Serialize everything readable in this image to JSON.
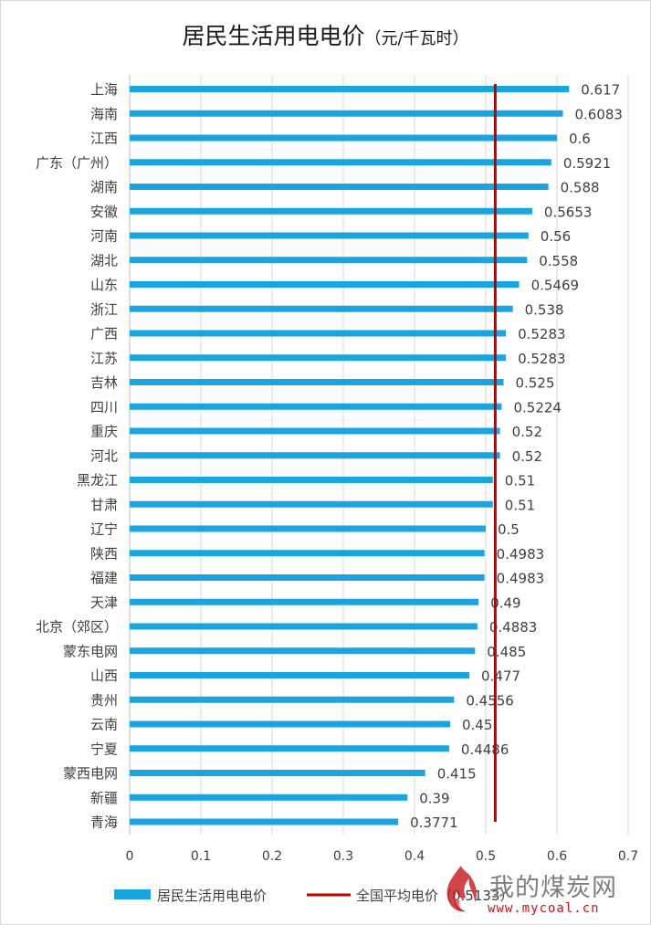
{
  "chart_data": {
    "type": "bar",
    "orientation": "horizontal",
    "title": "居民生活用电电价",
    "title_unit": "（元/千瓦时）",
    "categories": [
      "上海",
      "海南",
      "江西",
      "广东（广州）",
      "湖南",
      "安徽",
      "河南",
      "湖北",
      "山东",
      "浙江",
      "广西",
      "江苏",
      "吉林",
      "四川",
      "重庆",
      "河北",
      "黑龙江",
      "甘肃",
      "辽宁",
      "陕西",
      "福建",
      "天津",
      "北京（郊区）",
      "蒙东电网",
      "山西",
      "贵州",
      "云南",
      "宁夏",
      "蒙西电网",
      "新疆",
      "青海"
    ],
    "series": [
      {
        "name": "居民生活用电电价",
        "color": "#1aa4e0",
        "values": [
          0.617,
          0.6083,
          0.6,
          0.5921,
          0.588,
          0.5653,
          0.56,
          0.558,
          0.5469,
          0.538,
          0.5283,
          0.5283,
          0.525,
          0.5224,
          0.52,
          0.52,
          0.51,
          0.51,
          0.5,
          0.4983,
          0.4983,
          0.49,
          0.4883,
          0.485,
          0.477,
          0.4556,
          0.45,
          0.4486,
          0.415,
          0.39,
          0.3771
        ],
        "labels": [
          "0.617",
          "0.6083",
          "0.6",
          "0.5921",
          "0.588",
          "0.5653",
          "0.56",
          "0.558",
          "0.5469",
          "0.538",
          "0.5283",
          "0.5283",
          "0.525",
          "0.5224",
          "0.52",
          "0.52",
          "0.51",
          "0.51",
          "0.5",
          "0.4983",
          "0.4983",
          "0.49",
          "0.4883",
          "0.485",
          "0.477",
          "0.4556",
          "0.45",
          "0.4486",
          "0.415",
          "0.39",
          "0.3771"
        ]
      }
    ],
    "reference_line": {
      "name": "全国平均电价（0.5133）",
      "value": 0.5133,
      "color": "#c00000"
    },
    "xlim": [
      0,
      0.7
    ],
    "xticks": [
      0,
      0.1,
      0.2,
      0.3,
      0.4,
      0.5,
      0.6,
      0.7
    ],
    "xtick_labels": [
      "0",
      "0.1",
      "0.2",
      "0.3",
      "0.4",
      "0.5",
      "0.6",
      "0.7"
    ],
    "grid": "vertical",
    "legend": "bottom"
  },
  "watermark": {
    "name": "我的煤炭网",
    "url": "www.mycoal.cn",
    "logo_icon": "flame-logo-icon",
    "logo_color": "#c4161c"
  }
}
